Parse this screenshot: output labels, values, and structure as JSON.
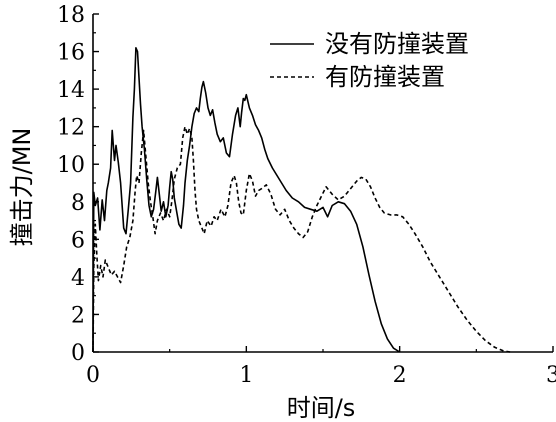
{
  "chart_data": {
    "type": "line",
    "title": "",
    "xlabel": "时间/s",
    "ylabel": "撞击力/MN",
    "xlim": [
      0,
      3
    ],
    "ylim": [
      0,
      18
    ],
    "x_ticks": [
      0,
      1,
      2,
      3
    ],
    "x_tick_labels": [
      "0",
      "1",
      "2",
      "3"
    ],
    "y_ticks": [
      0,
      2,
      4,
      6,
      8,
      10,
      12,
      14,
      16,
      18
    ],
    "y_tick_labels": [
      "0",
      "2",
      "4",
      "6",
      "8",
      "10",
      "12",
      "14",
      "16",
      "18"
    ],
    "grid": false,
    "legend_position": "top-right",
    "series": [
      {
        "name": "没有防撞装置",
        "style": "solid",
        "color": "#000000",
        "points": [
          [
            0.0,
            0.0
          ],
          [
            0.005,
            8.5
          ],
          [
            0.015,
            7.8
          ],
          [
            0.03,
            8.2
          ],
          [
            0.045,
            6.5
          ],
          [
            0.06,
            8.1
          ],
          [
            0.075,
            7.0
          ],
          [
            0.09,
            8.6
          ],
          [
            0.1,
            9.0
          ],
          [
            0.115,
            9.8
          ],
          [
            0.125,
            11.8
          ],
          [
            0.14,
            10.2
          ],
          [
            0.15,
            11.0
          ],
          [
            0.165,
            10.1
          ],
          [
            0.18,
            9.0
          ],
          [
            0.2,
            6.6
          ],
          [
            0.215,
            6.3
          ],
          [
            0.23,
            7.6
          ],
          [
            0.245,
            9.0
          ],
          [
            0.26,
            12.5
          ],
          [
            0.27,
            14.0
          ],
          [
            0.28,
            16.2
          ],
          [
            0.29,
            16.0
          ],
          [
            0.3,
            14.6
          ],
          [
            0.31,
            13.2
          ],
          [
            0.32,
            12.0
          ],
          [
            0.335,
            10.8
          ],
          [
            0.35,
            9.2
          ],
          [
            0.365,
            7.8
          ],
          [
            0.38,
            7.2
          ],
          [
            0.395,
            7.6
          ],
          [
            0.41,
            8.6
          ],
          [
            0.42,
            9.3
          ],
          [
            0.43,
            8.6
          ],
          [
            0.445,
            7.5
          ],
          [
            0.46,
            8.0
          ],
          [
            0.475,
            7.2
          ],
          [
            0.49,
            7.8
          ],
          [
            0.5,
            8.8
          ],
          [
            0.51,
            9.6
          ],
          [
            0.52,
            9.2
          ],
          [
            0.53,
            8.2
          ],
          [
            0.545,
            7.5
          ],
          [
            0.56,
            6.8
          ],
          [
            0.575,
            6.6
          ],
          [
            0.59,
            7.8
          ],
          [
            0.6,
            9.0
          ],
          [
            0.615,
            10.2
          ],
          [
            0.63,
            11.0
          ],
          [
            0.645,
            12.0
          ],
          [
            0.66,
            12.7
          ],
          [
            0.675,
            13.0
          ],
          [
            0.69,
            12.8
          ],
          [
            0.7,
            13.5
          ],
          [
            0.71,
            14.1
          ],
          [
            0.72,
            14.4
          ],
          [
            0.735,
            13.8
          ],
          [
            0.75,
            13.0
          ],
          [
            0.765,
            12.6
          ],
          [
            0.78,
            12.9
          ],
          [
            0.795,
            12.2
          ],
          [
            0.81,
            11.6
          ],
          [
            0.83,
            11.2
          ],
          [
            0.85,
            11.4
          ],
          [
            0.87,
            10.6
          ],
          [
            0.89,
            10.4
          ],
          [
            0.91,
            11.6
          ],
          [
            0.93,
            12.6
          ],
          [
            0.945,
            13.0
          ],
          [
            0.96,
            12.0
          ],
          [
            0.97,
            12.8
          ],
          [
            0.98,
            13.5
          ],
          [
            0.99,
            13.4
          ],
          [
            1.0,
            13.7
          ],
          [
            1.02,
            13.0
          ],
          [
            1.04,
            12.6
          ],
          [
            1.06,
            12.1
          ],
          [
            1.08,
            11.8
          ],
          [
            1.1,
            11.4
          ],
          [
            1.12,
            10.8
          ],
          [
            1.14,
            10.3
          ],
          [
            1.17,
            9.8
          ],
          [
            1.2,
            9.4
          ],
          [
            1.23,
            9.0
          ],
          [
            1.26,
            8.6
          ],
          [
            1.3,
            8.2
          ],
          [
            1.34,
            8.0
          ],
          [
            1.38,
            7.7
          ],
          [
            1.42,
            7.6
          ],
          [
            1.46,
            7.5
          ],
          [
            1.5,
            7.7
          ],
          [
            1.53,
            7.2
          ],
          [
            1.56,
            7.8
          ],
          [
            1.6,
            8.0
          ],
          [
            1.64,
            7.9
          ],
          [
            1.68,
            7.5
          ],
          [
            1.72,
            6.8
          ],
          [
            1.76,
            5.6
          ],
          [
            1.8,
            4.1
          ],
          [
            1.84,
            2.7
          ],
          [
            1.88,
            1.5
          ],
          [
            1.92,
            0.7
          ],
          [
            1.96,
            0.2
          ],
          [
            2.0,
            0.0
          ]
        ]
      },
      {
        "name": "有防撞装置",
        "style": "dashed",
        "color": "#000000",
        "points": [
          [
            0.0,
            0.0
          ],
          [
            0.005,
            4.5
          ],
          [
            0.015,
            6.8
          ],
          [
            0.025,
            5.2
          ],
          [
            0.035,
            3.8
          ],
          [
            0.05,
            4.6
          ],
          [
            0.065,
            4.0
          ],
          [
            0.08,
            4.9
          ],
          [
            0.1,
            4.5
          ],
          [
            0.12,
            4.1
          ],
          [
            0.14,
            4.3
          ],
          [
            0.16,
            4.0
          ],
          [
            0.18,
            3.7
          ],
          [
            0.2,
            4.6
          ],
          [
            0.22,
            5.6
          ],
          [
            0.24,
            6.1
          ],
          [
            0.26,
            7.0
          ],
          [
            0.275,
            8.6
          ],
          [
            0.285,
            9.4
          ],
          [
            0.3,
            9.0
          ],
          [
            0.315,
            10.6
          ],
          [
            0.33,
            11.8
          ],
          [
            0.345,
            10.4
          ],
          [
            0.36,
            9.0
          ],
          [
            0.375,
            8.0
          ],
          [
            0.39,
            7.2
          ],
          [
            0.405,
            6.3
          ],
          [
            0.42,
            7.0
          ],
          [
            0.44,
            7.4
          ],
          [
            0.46,
            7.0
          ],
          [
            0.48,
            7.6
          ],
          [
            0.5,
            7.2
          ],
          [
            0.515,
            8.1
          ],
          [
            0.53,
            9.2
          ],
          [
            0.55,
            9.8
          ],
          [
            0.57,
            10.0
          ],
          [
            0.585,
            11.4
          ],
          [
            0.6,
            12.0
          ],
          [
            0.615,
            11.6
          ],
          [
            0.63,
            11.9
          ],
          [
            0.645,
            11.4
          ],
          [
            0.655,
            10.2
          ],
          [
            0.665,
            8.6
          ],
          [
            0.675,
            7.6
          ],
          [
            0.69,
            7.0
          ],
          [
            0.71,
            6.6
          ],
          [
            0.725,
            6.3
          ],
          [
            0.745,
            7.0
          ],
          [
            0.77,
            6.7
          ],
          [
            0.79,
            7.2
          ],
          [
            0.81,
            7.0
          ],
          [
            0.835,
            7.6
          ],
          [
            0.86,
            7.2
          ],
          [
            0.88,
            7.8
          ],
          [
            0.9,
            9.0
          ],
          [
            0.92,
            9.4
          ],
          [
            0.935,
            9.0
          ],
          [
            0.95,
            8.0
          ],
          [
            0.965,
            7.4
          ],
          [
            0.98,
            7.3
          ],
          [
            1.0,
            8.6
          ],
          [
            1.02,
            9.5
          ],
          [
            1.04,
            9.1
          ],
          [
            1.06,
            8.3
          ],
          [
            1.08,
            8.6
          ],
          [
            1.1,
            8.7
          ],
          [
            1.13,
            8.9
          ],
          [
            1.16,
            8.4
          ],
          [
            1.19,
            7.6
          ],
          [
            1.22,
            7.3
          ],
          [
            1.25,
            7.6
          ],
          [
            1.28,
            7.0
          ],
          [
            1.31,
            6.6
          ],
          [
            1.34,
            6.3
          ],
          [
            1.37,
            6.1
          ],
          [
            1.4,
            6.4
          ],
          [
            1.43,
            7.2
          ],
          [
            1.46,
            7.8
          ],
          [
            1.49,
            8.3
          ],
          [
            1.52,
            8.8
          ],
          [
            1.56,
            8.4
          ],
          [
            1.6,
            8.1
          ],
          [
            1.64,
            8.3
          ],
          [
            1.68,
            8.7
          ],
          [
            1.72,
            9.1
          ],
          [
            1.75,
            9.3
          ],
          [
            1.78,
            9.2
          ],
          [
            1.81,
            8.8
          ],
          [
            1.84,
            8.2
          ],
          [
            1.87,
            7.7
          ],
          [
            1.9,
            7.4
          ],
          [
            1.94,
            7.3
          ],
          [
            1.98,
            7.3
          ],
          [
            2.02,
            7.2
          ],
          [
            2.06,
            6.8
          ],
          [
            2.1,
            6.3
          ],
          [
            2.15,
            5.6
          ],
          [
            2.2,
            4.8
          ],
          [
            2.26,
            4.0
          ],
          [
            2.32,
            3.2
          ],
          [
            2.38,
            2.4
          ],
          [
            2.44,
            1.7
          ],
          [
            2.5,
            1.1
          ],
          [
            2.56,
            0.6
          ],
          [
            2.62,
            0.25
          ],
          [
            2.68,
            0.05
          ],
          [
            2.72,
            0.0
          ]
        ]
      }
    ]
  }
}
